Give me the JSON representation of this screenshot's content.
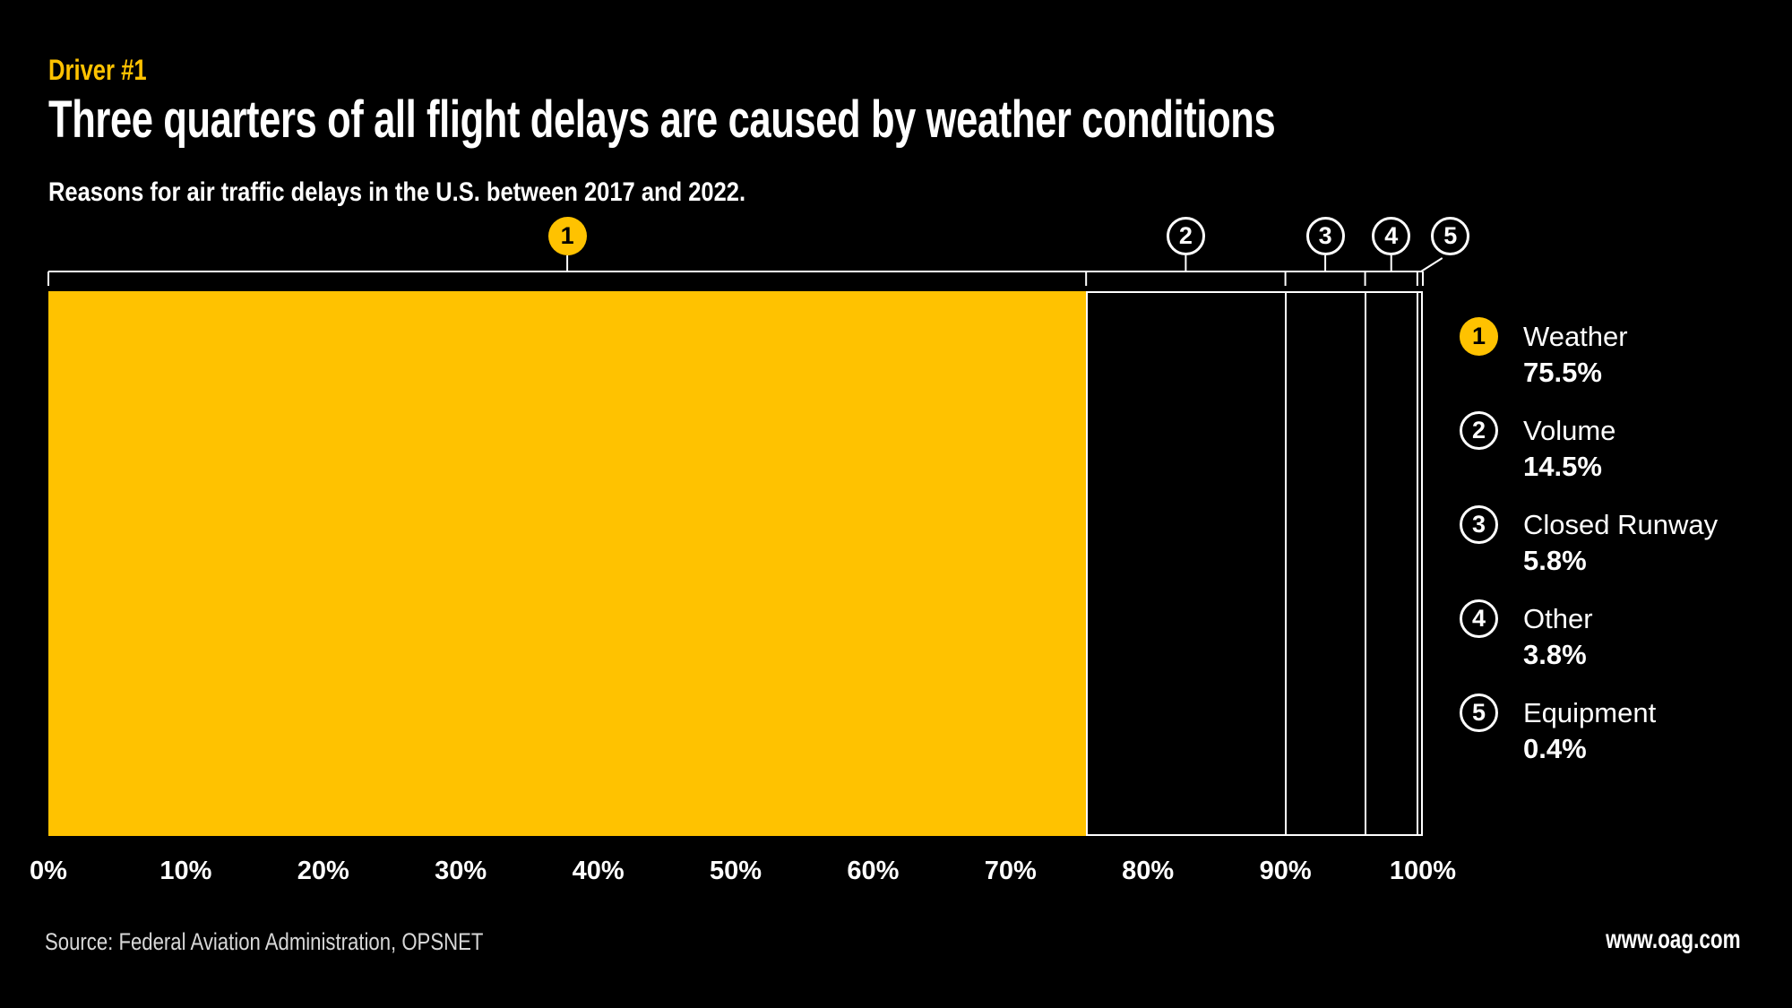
{
  "header": {
    "kicker": "Driver #1",
    "title": "Three quarters of all flight delays are caused by weather conditions",
    "subtitle": "Reasons for air traffic delays in the U.S. between 2017 and 2022."
  },
  "footer": {
    "source": "Source: Federal Aviation Administration, OPSNET",
    "website": "www.oag.com"
  },
  "colors": {
    "background": "#000000",
    "accent": "#FFC200",
    "text": "#FFFFFF",
    "muted_text": "#D8D8D8",
    "segment_border": "#FFFFFF"
  },
  "chart_data": {
    "type": "bar",
    "orientation": "horizontal-stacked",
    "unit": "%",
    "xlim": [
      0,
      100
    ],
    "x_ticks": [
      "0%",
      "10%",
      "20%",
      "30%",
      "40%",
      "50%",
      "60%",
      "70%",
      "80%",
      "90%",
      "100%"
    ],
    "grid": false,
    "legend_position": "right",
    "segments": [
      {
        "index": "1",
        "label": "Weather",
        "value": 75.5,
        "display": "75.5%",
        "highlighted": true
      },
      {
        "index": "2",
        "label": "Volume",
        "value": 14.5,
        "display": "14.5%",
        "highlighted": false
      },
      {
        "index": "3",
        "label": "Closed Runway",
        "value": 5.8,
        "display": "5.8%",
        "highlighted": false
      },
      {
        "index": "4",
        "label": "Other",
        "value": 3.8,
        "display": "3.8%",
        "highlighted": false
      },
      {
        "index": "5",
        "label": "Equipment",
        "value": 0.4,
        "display": "0.4%",
        "highlighted": false
      }
    ]
  }
}
